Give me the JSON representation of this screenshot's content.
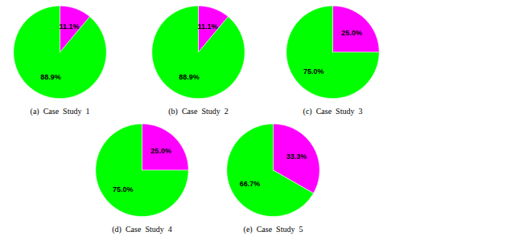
{
  "chart_data": [
    {
      "type": "pie",
      "title": "(a)  Case  Study  1",
      "values": [
        11.1,
        88.9
      ],
      "value_labels": [
        "11.1%",
        "88.9%"
      ],
      "colors": [
        "#ff00ff",
        "#00ff00"
      ],
      "data_labels": true
    },
    {
      "type": "pie",
      "title": "(b)  Case  Study  2",
      "values": [
        11.1,
        88.9
      ],
      "value_labels": [
        "11.1%",
        "88.9%"
      ],
      "colors": [
        "#ff00ff",
        "#00ff00"
      ],
      "data_labels": true
    },
    {
      "type": "pie",
      "title": "(c)  Case  Study  3",
      "values": [
        25.0,
        75.0
      ],
      "value_labels": [
        "25.0%",
        "75.0%"
      ],
      "colors": [
        "#ff00ff",
        "#00ff00"
      ],
      "data_labels": true
    },
    {
      "type": "pie",
      "title": "(d)  Case  Study  4",
      "values": [
        25.0,
        75.0
      ],
      "value_labels": [
        "25.0%",
        "75.0%"
      ],
      "colors": [
        "#ff00ff",
        "#00ff00"
      ],
      "data_labels": true
    },
    {
      "type": "pie",
      "title": "(e)  Case  Study  5",
      "values": [
        33.3,
        66.7
      ],
      "value_labels": [
        "33.3%",
        "66.7%"
      ],
      "colors": [
        "#ff00ff",
        "#00ff00"
      ],
      "data_labels": true
    }
  ]
}
